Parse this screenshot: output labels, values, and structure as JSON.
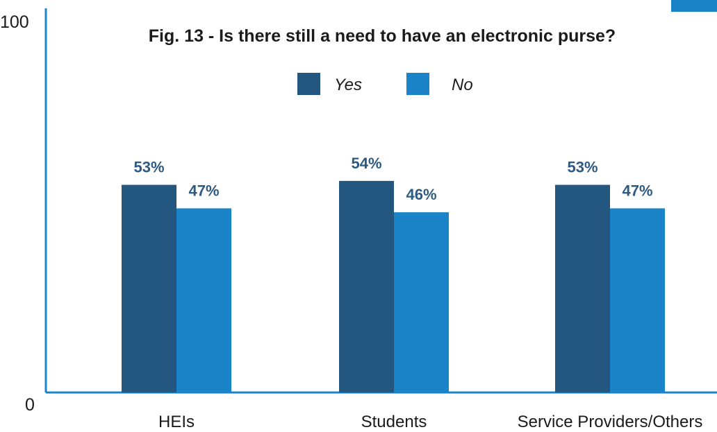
{
  "chart_data": {
    "type": "bar",
    "title": "Fig. 13 - Is there still a need to have an electronic purse?",
    "xlabel": "",
    "ylabel": "",
    "categories": [
      "HEIs",
      "Students",
      "Service Providers/Others"
    ],
    "series": [
      {
        "name": "Yes",
        "values": [
          53,
          54,
          53
        ],
        "color": "#24577f"
      },
      {
        "name": "No",
        "values": [
          47,
          46,
          47
        ],
        "color": "#1b84c9"
      }
    ],
    "data_labels": {
      "Yes": [
        "53%",
        "54%",
        "53%"
      ],
      "No": [
        "47%",
        "46%",
        "47%"
      ]
    },
    "y_ticks": [
      "100",
      "0"
    ],
    "ylim": [
      0,
      100
    ],
    "grid": false,
    "legend_position": "top-center",
    "axis_color": "#1b84c9",
    "accent_swatch_color": "#1b84c9"
  }
}
